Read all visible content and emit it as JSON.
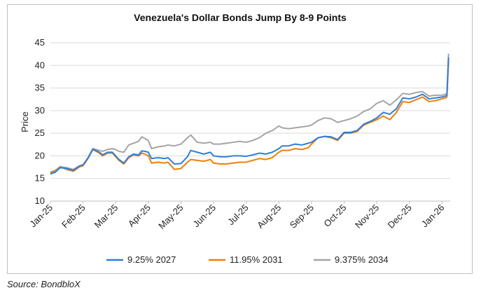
{
  "chart_data": {
    "type": "line",
    "title": "Venezuela's Dollar Bonds Jump By 8-9 Points",
    "xlabel": "",
    "ylabel": "Price",
    "ylim": [
      10,
      45
    ],
    "yticks": [
      10,
      15,
      20,
      25,
      30,
      35,
      40,
      45
    ],
    "xlim": [
      0,
      12.25
    ],
    "x_tick_labels": [
      "Jan-25",
      "Feb-25",
      "Mar-25",
      "Apr-25",
      "May-25",
      "Jun-25",
      "Jul-25",
      "Aug-25",
      "Sep-25",
      "Oct-25",
      "Nov-25",
      "Dec-25",
      "Jan-26"
    ],
    "x_unit": "months since Jan-25",
    "legend_position": "bottom",
    "grid": true,
    "series": [
      {
        "name": "9.25% 2027",
        "color": "#2f7ed8",
        "x": [
          0,
          0.15,
          0.3,
          0.5,
          0.7,
          0.9,
          1.0,
          1.15,
          1.3,
          1.5,
          1.6,
          1.75,
          1.9,
          2.0,
          2.1,
          2.25,
          2.4,
          2.55,
          2.7,
          2.8,
          2.9,
          3.0,
          3.1,
          3.3,
          3.5,
          3.6,
          3.8,
          4.0,
          4.2,
          4.3,
          4.5,
          4.7,
          4.9,
          5.0,
          5.2,
          5.4,
          5.6,
          5.8,
          6.0,
          6.2,
          6.4,
          6.6,
          6.8,
          7.0,
          7.1,
          7.3,
          7.5,
          7.7,
          7.9,
          8.0,
          8.2,
          8.4,
          8.6,
          8.8,
          9.0,
          9.2,
          9.4,
          9.6,
          9.8,
          10.0,
          10.2,
          10.4,
          10.6,
          10.8,
          11.0,
          11.2,
          11.4,
          11.6,
          11.8,
          12.0,
          12.1,
          12.15,
          12.2
        ],
        "y": [
          16,
          16.4,
          17.4,
          17.2,
          16.8,
          17.8,
          18.0,
          19.5,
          21.5,
          20.8,
          20.2,
          20.8,
          20.8,
          20.0,
          19.2,
          18.4,
          19.8,
          20.4,
          20.2,
          21.1,
          21.0,
          20.8,
          19.4,
          19.6,
          19.4,
          19.6,
          18.2,
          18.3,
          19.8,
          21.2,
          20.8,
          20.4,
          20.8,
          20.0,
          19.8,
          19.8,
          20.0,
          20.0,
          19.9,
          20.2,
          20.6,
          20.4,
          20.8,
          21.6,
          22.2,
          22.2,
          22.6,
          22.4,
          22.8,
          23.0,
          24.0,
          24.3,
          24.2,
          23.6,
          25.2,
          25.2,
          25.6,
          27.0,
          27.6,
          28.4,
          29.6,
          29.2,
          30.4,
          32.8,
          32.6,
          33.0,
          33.6,
          32.6,
          32.8,
          33.0,
          33.2,
          33.4,
          41.8
        ]
      },
      {
        "name": "11.95% 2031",
        "color": "#f07f09",
        "x": [
          0,
          0.15,
          0.3,
          0.5,
          0.7,
          0.9,
          1.0,
          1.15,
          1.3,
          1.5,
          1.6,
          1.75,
          1.9,
          2.0,
          2.1,
          2.25,
          2.4,
          2.55,
          2.7,
          2.8,
          2.9,
          3.0,
          3.1,
          3.3,
          3.5,
          3.6,
          3.8,
          4.0,
          4.2,
          4.3,
          4.5,
          4.7,
          4.9,
          5.0,
          5.2,
          5.4,
          5.6,
          5.8,
          6.0,
          6.2,
          6.4,
          6.6,
          6.8,
          7.0,
          7.1,
          7.3,
          7.5,
          7.7,
          7.9,
          8.0,
          8.2,
          8.4,
          8.6,
          8.8,
          9.0,
          9.2,
          9.4,
          9.6,
          9.8,
          10.0,
          10.2,
          10.4,
          10.6,
          10.8,
          11.0,
          11.2,
          11.4,
          11.6,
          11.8,
          12.0,
          12.1,
          12.15,
          12.2
        ],
        "y": [
          16.2,
          16.6,
          17.6,
          17.0,
          16.6,
          17.6,
          17.8,
          19.4,
          21.4,
          20.6,
          20.0,
          20.6,
          20.6,
          19.8,
          19.0,
          18.2,
          19.6,
          20.2,
          20.0,
          20.6,
          20.4,
          20.0,
          18.4,
          18.6,
          18.4,
          18.6,
          17.0,
          17.2,
          18.6,
          19.2,
          19.0,
          18.8,
          19.2,
          18.4,
          18.2,
          18.2,
          18.4,
          18.6,
          18.6,
          19.0,
          19.4,
          19.2,
          19.6,
          20.8,
          21.2,
          21.2,
          21.6,
          21.4,
          21.8,
          22.6,
          24.0,
          24.3,
          24.0,
          23.4,
          25.0,
          25.0,
          25.4,
          26.8,
          27.4,
          28.0,
          28.8,
          28.0,
          29.6,
          32.0,
          31.8,
          32.4,
          33.0,
          32.0,
          32.2,
          32.6,
          32.8,
          33.0,
          41.2
        ]
      },
      {
        "name": "9.375% 2034",
        "color": "#a5a5a5",
        "x": [
          0,
          0.15,
          0.3,
          0.5,
          0.7,
          0.9,
          1.0,
          1.15,
          1.3,
          1.5,
          1.6,
          1.75,
          1.9,
          2.0,
          2.1,
          2.25,
          2.4,
          2.55,
          2.7,
          2.8,
          2.9,
          3.0,
          3.1,
          3.3,
          3.5,
          3.6,
          3.8,
          4.0,
          4.2,
          4.3,
          4.5,
          4.7,
          4.9,
          5.0,
          5.2,
          5.4,
          5.6,
          5.8,
          6.0,
          6.2,
          6.4,
          6.6,
          6.8,
          7.0,
          7.1,
          7.3,
          7.5,
          7.7,
          7.9,
          8.0,
          8.2,
          8.4,
          8.6,
          8.8,
          9.0,
          9.2,
          9.4,
          9.6,
          9.8,
          10.0,
          10.2,
          10.4,
          10.6,
          10.8,
          11.0,
          11.2,
          11.4,
          11.6,
          11.8,
          12.0,
          12.1,
          12.15,
          12.2
        ],
        "y": [
          16.4,
          16.8,
          17.6,
          17.4,
          17.0,
          17.8,
          18.0,
          19.6,
          21.6,
          21.2,
          21.0,
          21.4,
          21.6,
          21.4,
          21.0,
          20.8,
          22.4,
          22.8,
          23.2,
          24.2,
          23.8,
          23.4,
          21.6,
          22.0,
          22.2,
          22.4,
          22.2,
          22.6,
          24.0,
          24.6,
          23.0,
          22.8,
          23.0,
          22.6,
          22.6,
          22.8,
          23.0,
          23.2,
          23.0,
          23.4,
          24.0,
          25.0,
          25.6,
          26.6,
          26.2,
          26.0,
          26.2,
          26.4,
          26.6,
          26.8,
          27.8,
          28.4,
          28.2,
          27.4,
          27.8,
          28.2,
          28.8,
          29.8,
          30.4,
          31.6,
          32.2,
          31.2,
          32.4,
          33.8,
          33.6,
          34.0,
          34.2,
          33.2,
          33.4,
          33.4,
          33.6,
          33.8,
          42.6
        ]
      }
    ]
  },
  "source_note": "Source: BondbloX"
}
